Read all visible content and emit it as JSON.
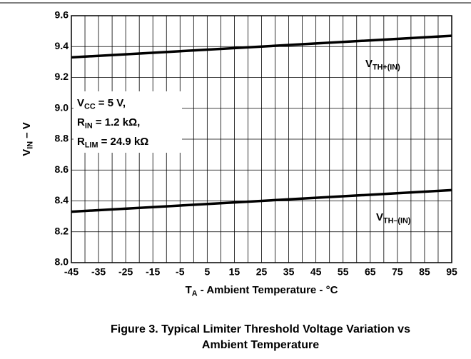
{
  "chart_data": {
    "type": "line",
    "x": [
      -45,
      95
    ],
    "series": [
      {
        "label": {
          "base": "V",
          "sub": "TH+(IN)"
        },
        "color": "#000000",
        "values": [
          9.33,
          9.47
        ]
      },
      {
        "label": {
          "base": "V",
          "sub": "TH–(IN)"
        },
        "color": "#000000",
        "values": [
          8.33,
          8.47
        ]
      }
    ],
    "xlim": [
      -45,
      95
    ],
    "xticks": [
      -45,
      -35,
      -25,
      -15,
      -5,
      5,
      15,
      25,
      35,
      45,
      55,
      65,
      75,
      85,
      95
    ],
    "x_minor_grid": [
      -40,
      -30,
      -20,
      -10,
      0,
      10,
      20,
      30,
      40,
      50,
      60,
      70,
      80,
      90
    ],
    "ylim": [
      8,
      9.6
    ],
    "yticks": [
      {
        "value": 8,
        "label": "8.0"
      },
      8.2,
      8.4,
      8.6,
      8.8,
      {
        "value": 9,
        "label": "9.0"
      },
      9.2,
      9.4,
      9.6
    ],
    "grid": true,
    "xlabel": {
      "base": "T",
      "sub": "A",
      "rest": " - Ambient Temperature - °C"
    },
    "ylabel": {
      "base": "V",
      "sub": "IN",
      "rest": " – V"
    },
    "annotation": [
      {
        "base": "V",
        "sub": "CC",
        "rest": " = 5 V,"
      },
      {
        "base": "R",
        "sub": "IN",
        "rest": " = 1.2 kΩ,"
      },
      {
        "base": "R",
        "sub": "LIM",
        "rest": " = 24.9 kΩ"
      }
    ],
    "caption": [
      "Figure 3. Typical Limiter Threshold Voltage Variation vs",
      "Ambient Temperature"
    ]
  }
}
